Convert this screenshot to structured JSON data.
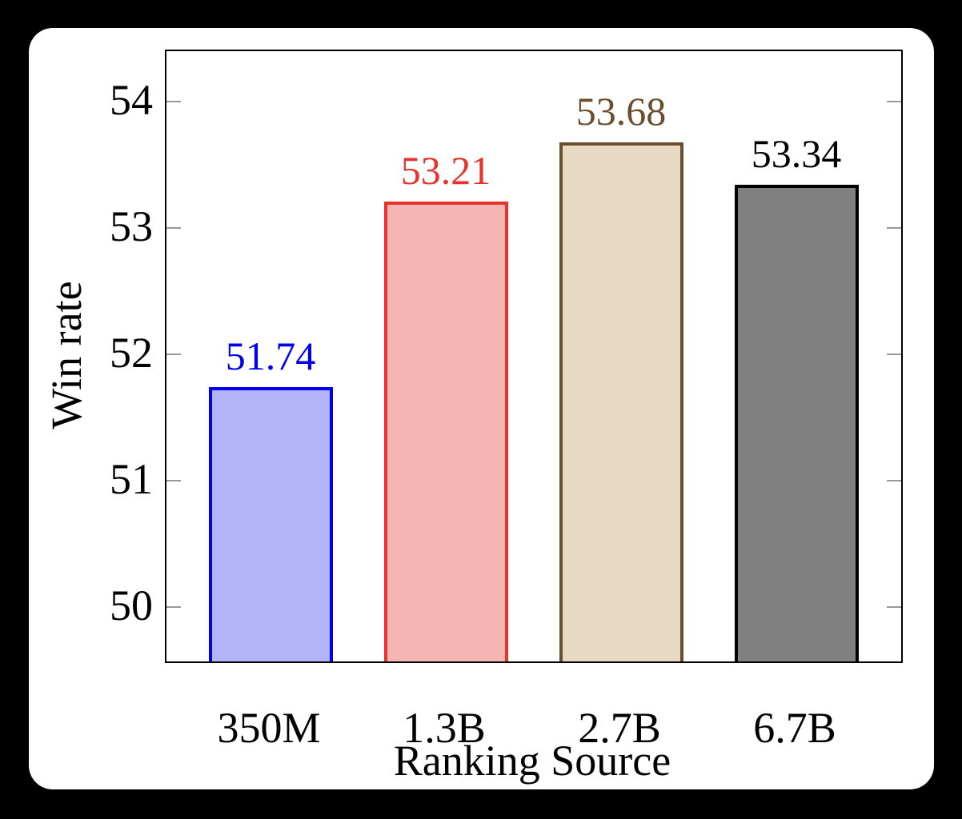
{
  "window": {
    "background_color": "#000000",
    "card_background_color": "#ffffff"
  },
  "chart_data": {
    "type": "bar",
    "title": "",
    "xlabel": "Ranking Source",
    "ylabel": "Win rate",
    "categories": [
      "350M",
      "1.3B",
      "2.7B",
      "6.7B"
    ],
    "values": [
      51.74,
      53.21,
      53.68,
      53.34
    ],
    "data_labels": [
      "51.74",
      "53.21",
      "53.68",
      "53.34"
    ],
    "bar_fill_colors": [
      "#b3b3f7",
      "#f5b6b3",
      "#e8d9c3",
      "#808080"
    ],
    "bar_edge_colors": [
      "#0000ee",
      "#e4342b",
      "#6b4e2d",
      "#000000"
    ],
    "data_label_colors": [
      "#0000ee",
      "#e4342b",
      "#6b4e2d",
      "#000000"
    ],
    "yticks": [
      50,
      51,
      52,
      53,
      54
    ],
    "ylim": [
      49.57,
      54.4
    ],
    "grid": false,
    "legend_position": "none",
    "axis_color": "#000000",
    "tick_mark_color": "#999999"
  }
}
